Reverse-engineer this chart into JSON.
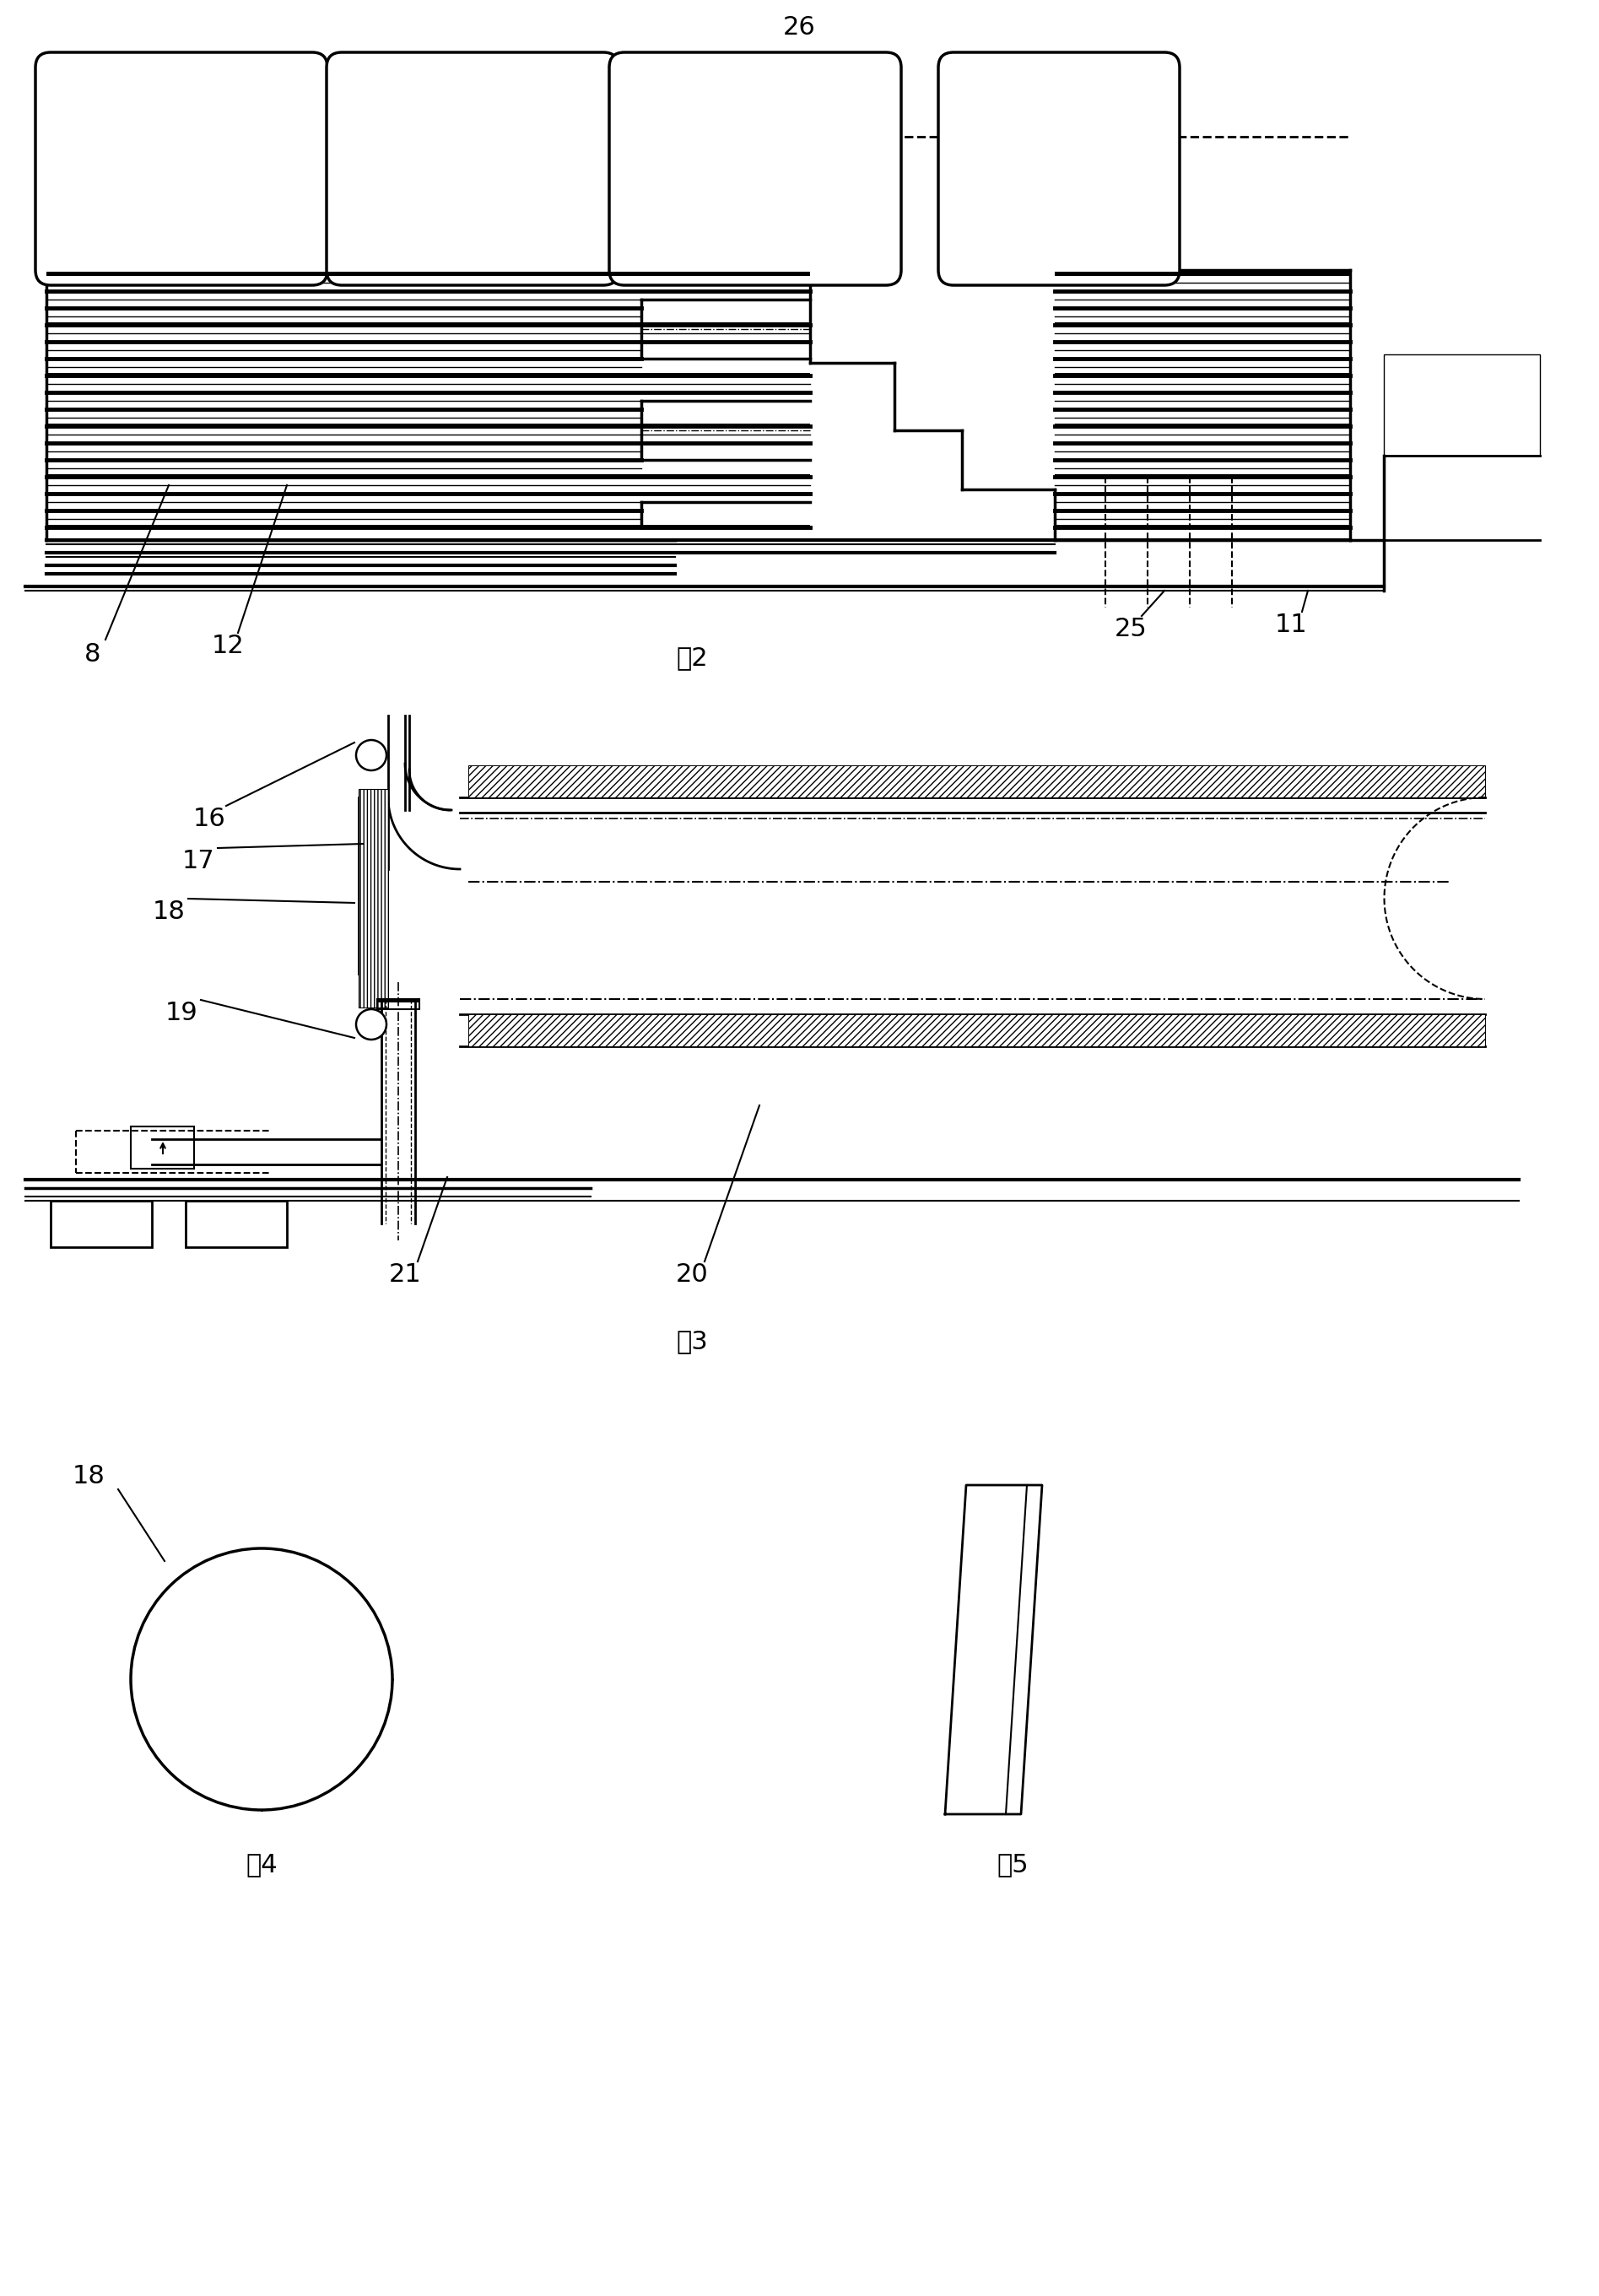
{
  "bg_color": "#ffffff",
  "line_color": "#000000",
  "fig2_label": "图2",
  "fig3_label": "图3",
  "fig4_label": "图4",
  "fig5_label": "图5"
}
